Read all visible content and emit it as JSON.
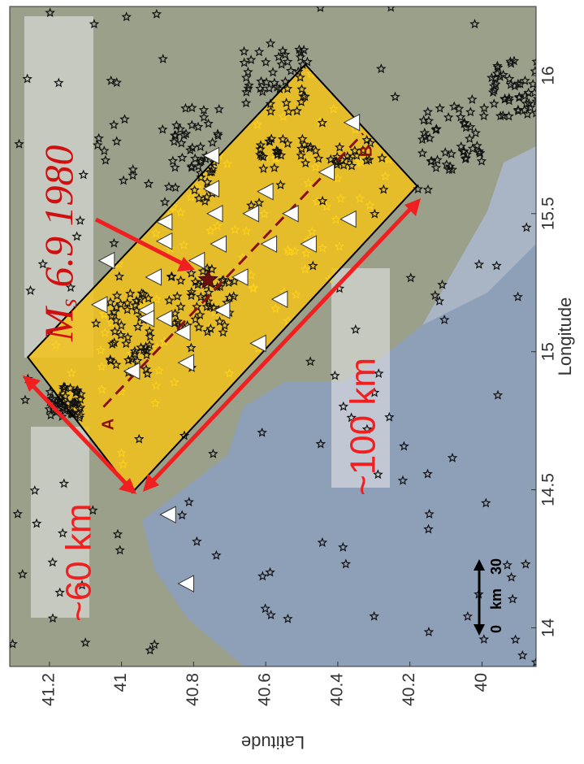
{
  "chart_data": {
    "type": "map",
    "xlabel": "Longitude",
    "ylabel": "Latitude",
    "xlim": [
      13.86,
      16.25
    ],
    "ylim": [
      39.85,
      41.31
    ],
    "xticks": [
      14,
      14.5,
      15,
      15.5,
      16
    ],
    "yticks": [
      41.2,
      41,
      40.8,
      40.6,
      40.4,
      40.2,
      40
    ],
    "annotations": {
      "magnitude_symbol": "M",
      "magnitude_sub": "s",
      "event": "6.9 1980",
      "width": "~60 km",
      "length": "~100 km",
      "point_a": "A",
      "point_b": "B",
      "scale_start": "0",
      "scale_unit": "km",
      "scale_end": "30"
    },
    "epicenter": {
      "lon": 15.26,
      "lat": 40.76
    },
    "box": {
      "lon": [
        14.98,
        16.04,
        15.6,
        14.49
      ],
      "lat": [
        41.26,
        40.49,
        40.18,
        40.97
      ]
    },
    "profile": {
      "lon": [
        14.8,
        15.79
      ],
      "lat": [
        41.05,
        40.33
      ]
    },
    "stations": {
      "lon": [
        15.83,
        15.71,
        15.65,
        15.59,
        15.58,
        15.47,
        15.5,
        15.5,
        15.5,
        15.48,
        15.4,
        15.39,
        15.39,
        15.39,
        15.33,
        15.27,
        15.27,
        15.33,
        15.17,
        15.15,
        15.12,
        15.12,
        15.15,
        15.19,
        15.07,
        14.96,
        15.03,
        14.93,
        14.41,
        14.16
      ],
      "lat": [
        40.36,
        40.75,
        40.43,
        40.75,
        40.6,
        40.88,
        40.74,
        40.64,
        40.53,
        40.37,
        40.88,
        40.73,
        40.59,
        40.48,
        40.79,
        40.91,
        40.67,
        41.04,
        41.06,
        40.93,
        40.93,
        40.88,
        40.72,
        40.56,
        40.83,
        40.82,
        40.62,
        40.97,
        40.87,
        40.82
      ]
    }
  }
}
